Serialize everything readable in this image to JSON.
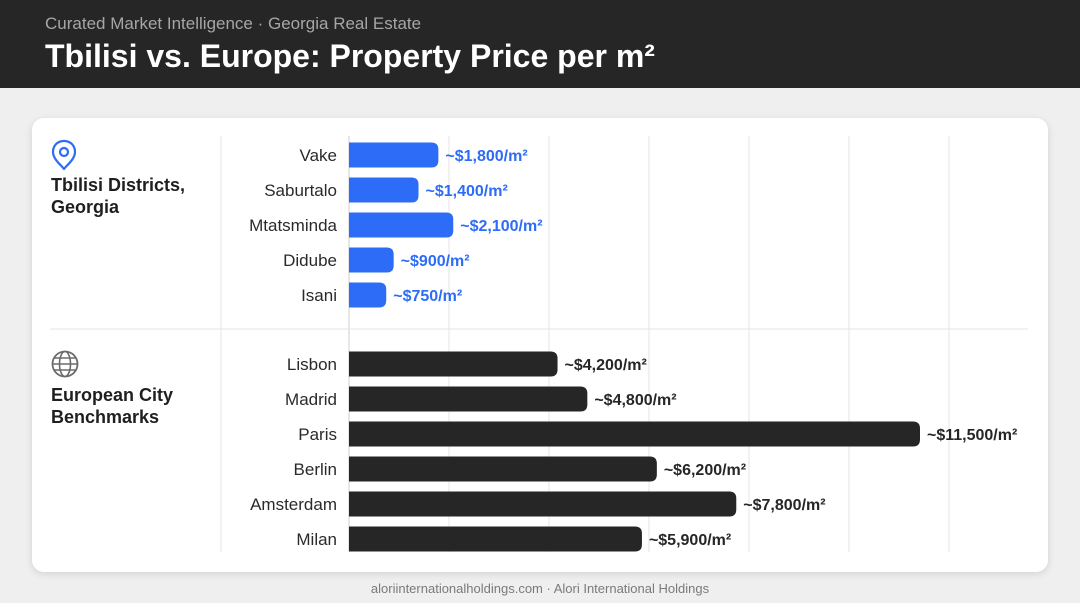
{
  "header": {
    "eyebrow": "Curated Market Intelligence · Georgia Real Estate",
    "title": "Tbilisi vs. Europe: Property Price per m²"
  },
  "footer": {
    "text": "aloriinternationalholdings.com · Alori International Holdings"
  },
  "colors": {
    "tbilisi": "#2d6cf6",
    "europe": "#262626",
    "grid": "#e4e4e4",
    "axis": "#cfcfcf"
  },
  "chart_data": {
    "type": "bar",
    "orientation": "horizontal",
    "xlim": [
      0,
      11500
    ],
    "grid": true,
    "groups": [
      {
        "name": "Tbilisi Districts, Georgia",
        "name_lines": [
          "Tbilisi Districts,",
          "Georgia"
        ],
        "icon": "location-pin-icon",
        "color": "#2d6cf6",
        "categories": [
          "Vake",
          "Saburtalo",
          "Mtatsminda",
          "Didube",
          "Isani"
        ],
        "values": [
          1800,
          1400,
          2100,
          900,
          750
        ],
        "labels": [
          "~$1,800/m²",
          "~$1,400/m²",
          "~$2,100/m²",
          "~$900/m²",
          "~$750/m²"
        ]
      },
      {
        "name": "European City Benchmarks",
        "name_lines": [
          "European City",
          "Benchmarks"
        ],
        "icon": "globe-icon",
        "color": "#262626",
        "categories": [
          "Lisbon",
          "Madrid",
          "Paris",
          "Berlin",
          "Amsterdam",
          "Milan"
        ],
        "values": [
          4200,
          4800,
          11500,
          6200,
          7800,
          5900
        ],
        "labels": [
          "~$4,200/m²",
          "~$4,800/m²",
          "~$11,500/m²",
          "~$6,200/m²",
          "~$7,800/m²",
          "~$5,900/m²"
        ]
      }
    ]
  }
}
